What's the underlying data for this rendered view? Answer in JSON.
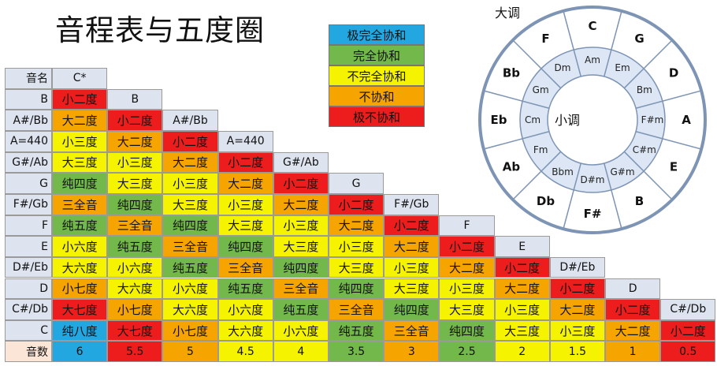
{
  "title": "音程表与五度圈",
  "colors": {
    "极完全协和": "#23a7e0",
    "完全协和": "#72b84a",
    "不完全协和": "#f6f300",
    "不协和": "#f6a400",
    "极不协和": "#ee1d1d",
    "header": "#dde3ef",
    "circle_outer": "#ffffff",
    "circle_inner": "#dce6f4",
    "circle_line": "#7d94b4"
  },
  "legend": [
    {
      "label": "极完全协和",
      "cat": "极完全协和"
    },
    {
      "label": "完全协和",
      "cat": "完全协和"
    },
    {
      "label": "不完全协和",
      "cat": "不完全协和"
    },
    {
      "label": "不协和",
      "cat": "不协和"
    },
    {
      "label": "极不协和",
      "cat": "极不协和"
    }
  ],
  "table": {
    "header_label": "音名",
    "beats_label": "音数",
    "columns": [
      "C*",
      "B",
      "A#/Bb",
      "A=440",
      "G#/Ab",
      "G",
      "F#/Gb",
      "F",
      "E",
      "D#/Eb",
      "D",
      "C#/Db"
    ],
    "rows": [
      "B",
      "A#/Bb",
      "A=440",
      "G#/Ab",
      "G",
      "F#/Gb",
      "F",
      "E",
      "D#/Eb",
      "D",
      "C#/Db",
      "C"
    ],
    "intervals": [
      "小二度",
      "大二度",
      "小三度",
      "大三度",
      "纯四度",
      "三全音",
      "纯五度",
      "小六度",
      "大六度",
      "小七度",
      "大七度",
      "纯八度"
    ],
    "interval_category": {
      "小二度": "极不协和",
      "大二度": "不协和",
      "小三度": "不完全协和",
      "大三度": "不完全协和",
      "纯四度": "完全协和",
      "三全音": "不协和",
      "纯五度": "完全协和",
      "小六度": "不完全协和",
      "大六度": "不完全协和",
      "小七度": "不协和",
      "大七度": "极不协和",
      "纯八度": "极完全协和"
    },
    "beats": [
      "6",
      "5.5",
      "5",
      "4.5",
      "4",
      "3.5",
      "3",
      "2.5",
      "2",
      "1.5",
      "1",
      "0.5"
    ]
  },
  "circle": {
    "major_label": "大调",
    "minor_label": "小调",
    "major": [
      "C",
      "G",
      "D",
      "A",
      "E",
      "B",
      "F#",
      "Db",
      "Ab",
      "Eb",
      "Bb",
      "F"
    ],
    "minor": [
      "Am",
      "Em",
      "Bm",
      "F#m",
      "C#m",
      "G#m",
      "D#m",
      "Bbm",
      "Fm",
      "Cm",
      "Gm",
      "Dm"
    ]
  }
}
